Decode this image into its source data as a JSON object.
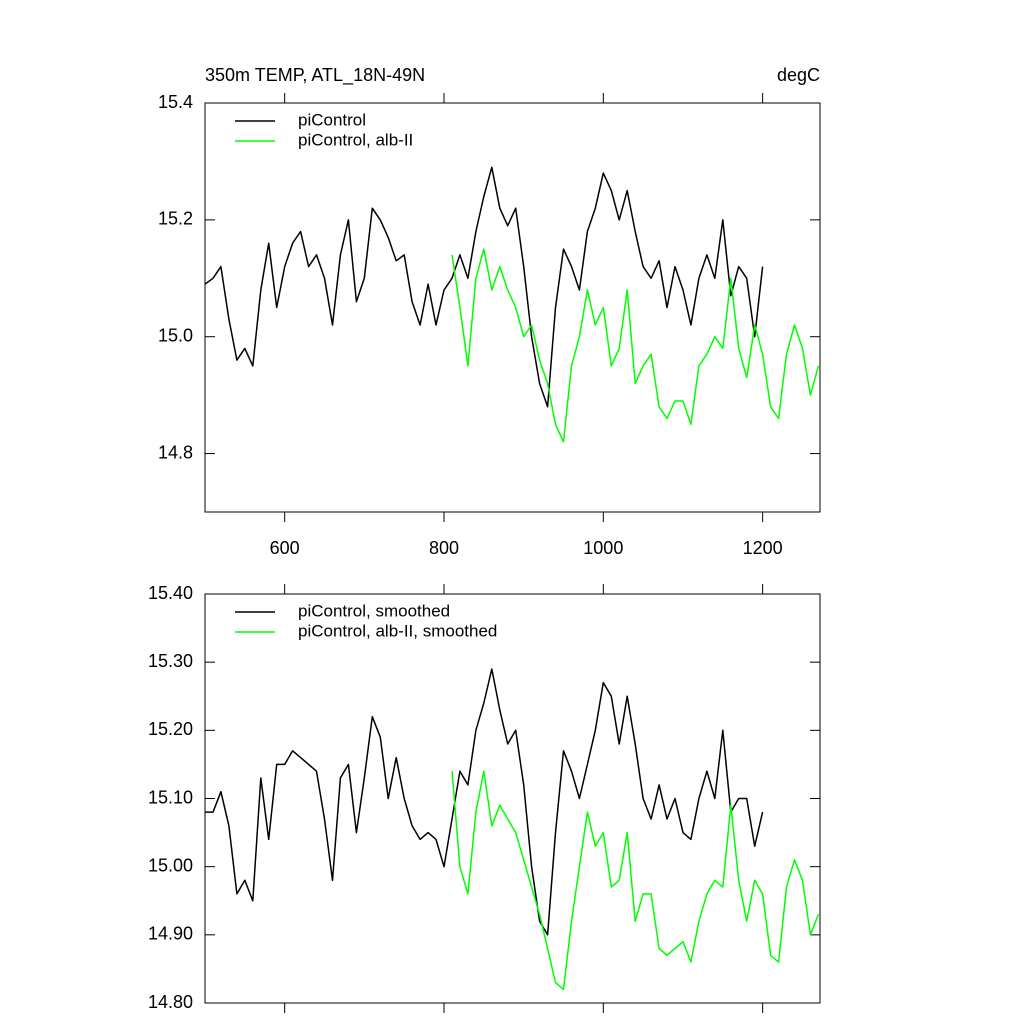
{
  "chart_data": [
    {
      "type": "line",
      "title": "350m TEMP, ATL_18N-49N",
      "units_label": "degC",
      "legend": "upper left",
      "x": [
        500,
        510,
        520,
        530,
        540,
        550,
        560,
        570,
        580,
        590,
        600,
        610,
        620,
        630,
        640,
        650,
        660,
        670,
        680,
        690,
        700,
        710,
        720,
        730,
        740,
        750,
        760,
        770,
        780,
        790,
        800,
        810,
        820,
        830,
        840,
        850,
        860,
        870,
        880,
        890,
        900,
        910,
        920,
        930,
        940,
        950,
        960,
        970,
        980,
        990,
        1000,
        1010,
        1020,
        1030,
        1040,
        1050,
        1060,
        1070,
        1080,
        1090,
        1100,
        1110,
        1120,
        1130,
        1140,
        1150,
        1160,
        1170,
        1180,
        1190,
        1200,
        1210,
        1220,
        1230,
        1240,
        1250,
        1260,
        1270
      ],
      "xlim": [
        500,
        1272
      ],
      "xticks": [
        600,
        800,
        1000,
        1200
      ],
      "ylim": [
        14.7,
        15.4
      ],
      "yticks": [
        14.8,
        {
          "value": 15,
          "label": "15.0"
        },
        15.2,
        15.4
      ],
      "series": [
        {
          "name": "piControl",
          "color": "#000000",
          "values": [
            15.09,
            15.1,
            15.12,
            15.03,
            14.96,
            14.98,
            14.95,
            15.08,
            15.16,
            15.05,
            15.12,
            15.16,
            15.18,
            15.12,
            15.14,
            15.1,
            15.02,
            15.14,
            15.2,
            15.06,
            15.1,
            15.22,
            15.2,
            15.17,
            15.13,
            15.14,
            15.06,
            15.02,
            15.09,
            15.02,
            15.08,
            15.1,
            15.14,
            15.1,
            15.18,
            15.24,
            15.29,
            15.22,
            15.19,
            15.22,
            15.12,
            15.0,
            14.92,
            14.88,
            15.05,
            15.15,
            15.12,
            15.08,
            15.18,
            15.22,
            15.28,
            15.25,
            15.2,
            15.25,
            15.18,
            15.12,
            15.1,
            15.13,
            15.05,
            15.12,
            15.08,
            15.02,
            15.1,
            15.14,
            15.1,
            15.2,
            15.07,
            15.12,
            15.1,
            15.0,
            15.12,
            null,
            null,
            null,
            null,
            null,
            null,
            null
          ]
        },
        {
          "name": "piControl, alb-II",
          "color": "#00ff00",
          "values": [
            null,
            null,
            null,
            null,
            null,
            null,
            null,
            null,
            null,
            null,
            null,
            null,
            null,
            null,
            null,
            null,
            null,
            null,
            null,
            null,
            null,
            null,
            null,
            null,
            null,
            null,
            null,
            null,
            null,
            null,
            null,
            15.14,
            15.05,
            14.95,
            15.1,
            15.15,
            15.08,
            15.12,
            15.08,
            15.05,
            15.0,
            15.02,
            14.96,
            14.92,
            14.85,
            14.82,
            14.95,
            15.0,
            15.08,
            15.02,
            15.05,
            14.95,
            14.98,
            15.08,
            14.92,
            14.95,
            14.97,
            14.88,
            14.86,
            14.89,
            14.89,
            14.85,
            14.95,
            14.97,
            15.0,
            14.98,
            15.1,
            14.98,
            14.93,
            15.02,
            14.97,
            14.88,
            14.86,
            14.97,
            15.02,
            14.98,
            14.9,
            14.95
          ]
        }
      ]
    },
    {
      "type": "line",
      "legend": "upper left",
      "x": [
        500,
        510,
        520,
        530,
        540,
        550,
        560,
        570,
        580,
        590,
        600,
        610,
        620,
        630,
        640,
        650,
        660,
        670,
        680,
        690,
        700,
        710,
        720,
        730,
        740,
        750,
        760,
        770,
        780,
        790,
        800,
        810,
        820,
        830,
        840,
        850,
        860,
        870,
        880,
        890,
        900,
        910,
        920,
        930,
        940,
        950,
        960,
        970,
        980,
        990,
        1000,
        1010,
        1020,
        1030,
        1040,
        1050,
        1060,
        1070,
        1080,
        1090,
        1100,
        1110,
        1120,
        1130,
        1140,
        1150,
        1160,
        1170,
        1180,
        1190,
        1200,
        1210,
        1220,
        1230,
        1240,
        1250,
        1260,
        1270
      ],
      "xlim": [
        500,
        1272
      ],
      "xticks": [
        600,
        800,
        1000,
        1200
      ],
      "ylim": [
        14.8,
        15.4
      ],
      "yticks": [
        {
          "value": 14.8,
          "label": "14.80"
        },
        {
          "value": 14.9,
          "label": "14.90"
        },
        {
          "value": 15,
          "label": "15.00"
        },
        {
          "value": 15.1,
          "label": "15.10"
        },
        {
          "value": 15.2,
          "label": "15.20"
        },
        {
          "value": 15.3,
          "label": "15.30"
        },
        {
          "value": 15.4,
          "label": "15.40"
        }
      ],
      "series": [
        {
          "name": "piControl, smoothed",
          "color": "#000000",
          "values": [
            15.08,
            15.08,
            15.11,
            15.06,
            14.96,
            14.98,
            14.95,
            15.13,
            15.04,
            15.15,
            15.15,
            15.17,
            15.16,
            15.15,
            15.14,
            15.07,
            14.98,
            15.13,
            15.15,
            15.05,
            15.13,
            15.22,
            15.19,
            15.1,
            15.16,
            15.1,
            15.06,
            15.04,
            15.05,
            15.04,
            15.0,
            15.07,
            15.14,
            15.12,
            15.2,
            15.24,
            15.29,
            15.23,
            15.18,
            15.2,
            15.12,
            15.0,
            14.92,
            14.9,
            15.05,
            15.17,
            15.14,
            15.1,
            15.15,
            15.2,
            15.27,
            15.25,
            15.18,
            15.25,
            15.18,
            15.1,
            15.07,
            15.12,
            15.07,
            15.1,
            15.05,
            15.04,
            15.1,
            15.14,
            15.1,
            15.2,
            15.08,
            15.1,
            15.1,
            15.03,
            15.08,
            null,
            null,
            null,
            null,
            null,
            null,
            null
          ]
        },
        {
          "name": "piControl, alb-II, smoothed",
          "color": "#00ff00",
          "values": [
            null,
            null,
            null,
            null,
            null,
            null,
            null,
            null,
            null,
            null,
            null,
            null,
            null,
            null,
            null,
            null,
            null,
            null,
            null,
            null,
            null,
            null,
            null,
            null,
            null,
            null,
            null,
            null,
            null,
            null,
            null,
            15.14,
            15.0,
            14.96,
            15.08,
            15.14,
            15.06,
            15.09,
            15.07,
            15.05,
            15.01,
            14.97,
            14.93,
            14.88,
            14.83,
            14.82,
            14.92,
            15.0,
            15.08,
            15.03,
            15.05,
            14.97,
            14.98,
            15.05,
            14.92,
            14.96,
            14.96,
            14.88,
            14.87,
            14.88,
            14.89,
            14.86,
            14.92,
            14.96,
            14.98,
            14.97,
            15.09,
            14.98,
            14.92,
            14.98,
            14.96,
            14.87,
            14.86,
            14.97,
            15.01,
            14.98,
            14.9,
            14.93
          ]
        }
      ]
    }
  ]
}
